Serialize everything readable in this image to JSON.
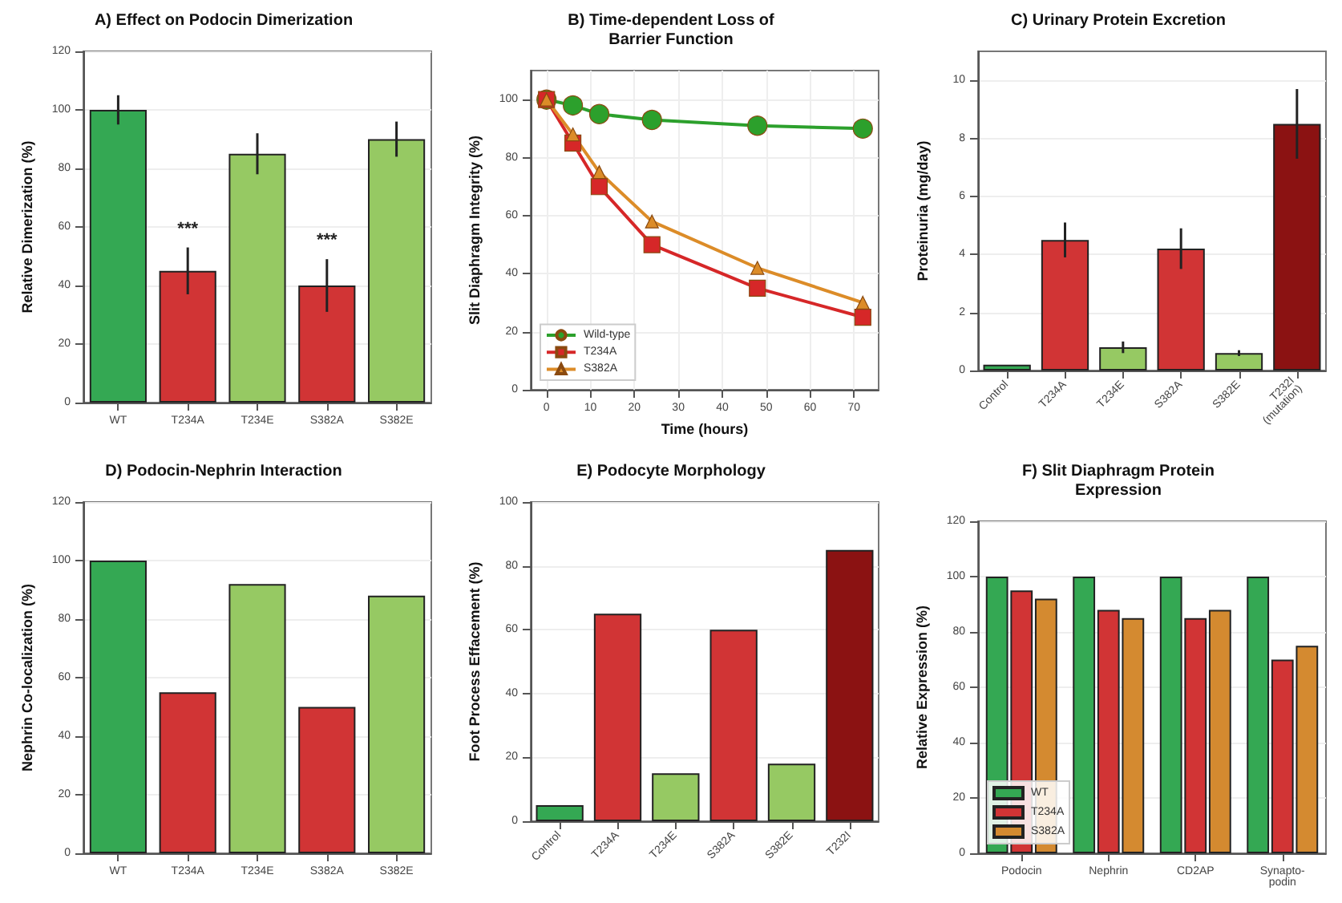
{
  "chart_data": [
    {
      "type": "bar",
      "title": "A) Effect on Podocin Dimerization",
      "ylabel": "Relative Dimerization (%)",
      "categories": [
        "WT",
        "T234A",
        "T234E",
        "S382A",
        "S382E"
      ],
      "values": [
        100,
        45,
        85,
        40,
        90
      ],
      "errors": [
        5,
        8,
        7,
        9,
        6
      ],
      "colors": [
        "#34a853",
        "#d13435",
        "#96c963",
        "#d13435",
        "#96c963"
      ],
      "ylim": [
        0,
        120
      ],
      "yticks": [
        0,
        20,
        40,
        60,
        80,
        100,
        120
      ],
      "grid": "y",
      "annotations": [
        {
          "text": "***",
          "x": "T234A",
          "y": 53
        },
        {
          "text": "***",
          "x": "S382A",
          "y": 49
        }
      ]
    },
    {
      "type": "line",
      "title": "B) Time-dependent Loss of\nBarrier Function",
      "xlabel": "Time (hours)",
      "ylabel": "Slit Diaphragm Integrity (%)",
      "x": [
        0,
        6,
        12,
        24,
        48,
        72
      ],
      "series": [
        {
          "name": "Wild-type",
          "color": "#2ca02c",
          "marker": "circle",
          "values": [
            100,
            98,
            95,
            93,
            91,
            90
          ]
        },
        {
          "name": "T234A",
          "color": "#d62728",
          "marker": "square",
          "values": [
            100,
            85,
            70,
            50,
            35,
            25
          ]
        },
        {
          "name": "S382A",
          "color": "#dc8c28",
          "marker": "triangle",
          "values": [
            100,
            88,
            75,
            58,
            42,
            30
          ]
        }
      ],
      "xlim": [
        -3.6,
        75.6
      ],
      "xticks": [
        0,
        10,
        20,
        30,
        40,
        50,
        60,
        70
      ],
      "ylim": [
        0,
        110
      ],
      "yticks": [
        0,
        20,
        40,
        60,
        80,
        100
      ],
      "grid": true,
      "legend": "bottom left",
      "line_style": "solid"
    },
    {
      "type": "bar",
      "title": "C) Urinary Protein Excretion",
      "ylabel": "Proteinuria (mg/day)",
      "categories": [
        "Control",
        "T234A",
        "T234E",
        "S382A",
        "S382E",
        "T232I\n(mutation)"
      ],
      "values": [
        0.2,
        4.5,
        0.8,
        4.2,
        0.6,
        8.5
      ],
      "errors": [
        null,
        0.6,
        0.2,
        0.7,
        0.1,
        1.2
      ],
      "colors": [
        "#34a853",
        "#d13435",
        "#96c963",
        "#d13435",
        "#96c963",
        "#8b1212"
      ],
      "ylim": [
        0,
        11
      ],
      "yticks": [
        0,
        2,
        4,
        6,
        8,
        10
      ],
      "grid": "y"
    },
    {
      "type": "bar",
      "title": "D) Podocin-Nephrin Interaction",
      "ylabel": "Nephrin Co-localization (%)",
      "categories": [
        "WT",
        "T234A",
        "T234E",
        "S382A",
        "S382E"
      ],
      "values": [
        100,
        55,
        92,
        50,
        88
      ],
      "colors": [
        "#34a853",
        "#d13435",
        "#96c963",
        "#d13435",
        "#96c963"
      ],
      "ylim": [
        0,
        120
      ],
      "yticks": [
        0,
        20,
        40,
        60,
        80,
        100,
        120
      ],
      "grid": "y"
    },
    {
      "type": "bar",
      "title": "E) Podocyte Morphology",
      "ylabel": "Foot Process Effacement (%)",
      "categories": [
        "Control",
        "T234A",
        "T234E",
        "S382A",
        "S382E",
        "T232I"
      ],
      "values": [
        5,
        65,
        15,
        60,
        18,
        85
      ],
      "colors": [
        "#34a853",
        "#d13435",
        "#96c963",
        "#d13435",
        "#96c963",
        "#8b1212"
      ],
      "ylim": [
        0,
        100
      ],
      "yticks": [
        0,
        20,
        40,
        60,
        80,
        100
      ],
      "grid": "y"
    },
    {
      "type": "bar",
      "title": "F) Slit Diaphragm Protein\nExpression",
      "ylabel": "Relative Expression (%)",
      "categories": [
        "Podocin",
        "Nephrin",
        "CD2AP",
        "Synapto-\npodin"
      ],
      "series": [
        {
          "name": "WT",
          "color": "#34a853",
          "values": [
            100,
            100,
            100,
            100
          ]
        },
        {
          "name": "T234A",
          "color": "#d13435",
          "values": [
            95,
            88,
            85,
            70
          ]
        },
        {
          "name": "S382A",
          "color": "#d48a30",
          "values": [
            92,
            85,
            88,
            75
          ]
        }
      ],
      "ylim": [
        0,
        120
      ],
      "yticks": [
        0,
        20,
        40,
        60,
        80,
        100,
        120
      ],
      "grid": "y",
      "legend": "bottom left"
    }
  ]
}
